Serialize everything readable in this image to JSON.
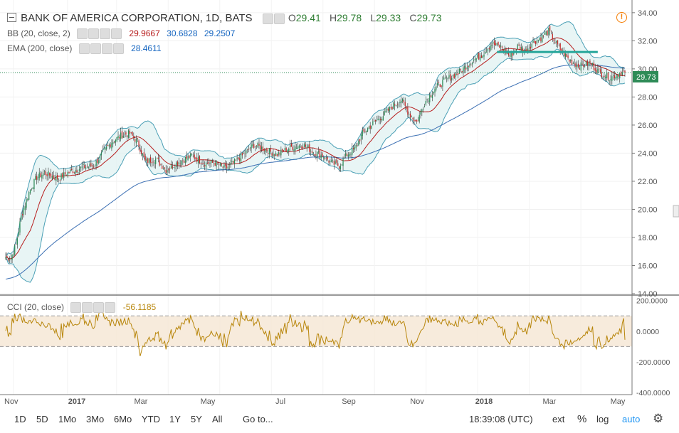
{
  "header": {
    "title": "BANK OF AMERICA CORPORATION, 1D, BATS",
    "ohlc": [
      {
        "k": "O",
        "v": "29.41"
      },
      {
        "k": "H",
        "v": "29.78"
      },
      {
        "k": "L",
        "v": "29.33"
      },
      {
        "k": "C",
        "v": "29.73"
      }
    ]
  },
  "indicators": {
    "bb": {
      "label": "BB (20, close, 2)",
      "basis": "29.9667",
      "upper": "30.6828",
      "lower": "29.2507",
      "colors": {
        "basis": "#b71c1c",
        "upper": "#1565c0",
        "lower": "#1565c0"
      }
    },
    "ema": {
      "label": "EMA (200, close)",
      "value": "28.4611",
      "color": "#1565c0"
    },
    "cci": {
      "label": "CCI (20, close)",
      "value": "-56.1185",
      "color": "#b8860b"
    }
  },
  "price_label": "29.73",
  "toolbar": {
    "ranges": [
      "1D",
      "5D",
      "1Mo",
      "3Mo",
      "6Mo",
      "YTD",
      "1Y",
      "5Y",
      "All"
    ],
    "goto": "Go to...",
    "time": "18:39:08 (UTC)",
    "ext": "ext",
    "percent": "%",
    "log": "log",
    "auto": "auto"
  },
  "colors": {
    "up": "#26a69a",
    "down": "#ef5350",
    "candle_up": "#2e8b57",
    "candle_down": "#c62828",
    "bb_fill": "#e0f2f1",
    "bb_band": "#4a9fb5",
    "cci_band": "#f5e6d3",
    "hline": "#26a69a",
    "accent": "#2196f3"
  },
  "chart_data": [
    {
      "type": "candlestick",
      "title": "BANK OF AMERICA CORPORATION, 1D, BATS",
      "x_tick_labels": [
        "Nov",
        "2017",
        "Mar",
        "May",
        "Jul",
        "Sep",
        "Nov",
        "2018",
        "Mar",
        "May"
      ],
      "y_tick_labels": [
        "14.00",
        "16.00",
        "18.00",
        "20.00",
        "22.00",
        "24.00",
        "26.00",
        "28.00",
        "30.00",
        "32.00",
        "34.00"
      ],
      "ylim": [
        14,
        34.6
      ],
      "close_points": [
        [
          0,
          16.6
        ],
        [
          4,
          16.5
        ],
        [
          8,
          17.5
        ],
        [
          12,
          19.5
        ],
        [
          18,
          21.2
        ],
        [
          24,
          22.3
        ],
        [
          30,
          22.6
        ],
        [
          40,
          22.2
        ],
        [
          50,
          22.7
        ],
        [
          60,
          23.0
        ],
        [
          68,
          23.1
        ],
        [
          75,
          24.0
        ],
        [
          82,
          24.8
        ],
        [
          90,
          25.3
        ],
        [
          96,
          25.4
        ],
        [
          102,
          24.8
        ],
        [
          108,
          23.4
        ],
        [
          116,
          23.6
        ],
        [
          124,
          22.8
        ],
        [
          134,
          23.4
        ],
        [
          144,
          23.8
        ],
        [
          154,
          23.3
        ],
        [
          162,
          23.3
        ],
        [
          170,
          22.9
        ],
        [
          176,
          23.3
        ],
        [
          184,
          23.9
        ],
        [
          192,
          24.6
        ],
        [
          200,
          24.3
        ],
        [
          210,
          23.9
        ],
        [
          220,
          24.4
        ],
        [
          230,
          24.6
        ],
        [
          238,
          24.1
        ],
        [
          246,
          23.8
        ],
        [
          252,
          23.3
        ],
        [
          258,
          23.1
        ],
        [
          264,
          23.9
        ],
        [
          270,
          24.3
        ],
        [
          276,
          25.4
        ],
        [
          284,
          26.1
        ],
        [
          292,
          26.7
        ],
        [
          300,
          27.4
        ],
        [
          306,
          27.8
        ],
        [
          312,
          26.8
        ],
        [
          318,
          26.2
        ],
        [
          324,
          27.6
        ],
        [
          332,
          28.6
        ],
        [
          340,
          29.2
        ],
        [
          350,
          29.7
        ],
        [
          360,
          30.5
        ],
        [
          368,
          31.0
        ],
        [
          376,
          31.8
        ],
        [
          384,
          31.5
        ],
        [
          390,
          30.9
        ],
        [
          396,
          31.6
        ],
        [
          402,
          31.3
        ],
        [
          408,
          31.9
        ],
        [
          414,
          32.2
        ],
        [
          420,
          32.7
        ],
        [
          428,
          31.5
        ],
        [
          436,
          30.6
        ],
        [
          444,
          30.2
        ],
        [
          452,
          30.4
        ],
        [
          460,
          29.7
        ],
        [
          468,
          29.4
        ],
        [
          476,
          29.73
        ]
      ],
      "n_days": 480,
      "horizontal_line": 31.2,
      "series": [
        {
          "name": "BB (20, close, 2)",
          "values": [
            "29.9667",
            "30.6828",
            "29.2507"
          ]
        },
        {
          "name": "EMA (200, close)",
          "values": [
            "28.4611"
          ]
        }
      ]
    },
    {
      "type": "line",
      "title": "CCI (20, close)",
      "y_tick_labels": [
        "200.0000",
        "0.0000",
        "-200.0000",
        "-400.0000"
      ],
      "ylim": [
        -400,
        200
      ],
      "bands": [
        100,
        -100
      ],
      "last_value": -56.1185
    }
  ]
}
